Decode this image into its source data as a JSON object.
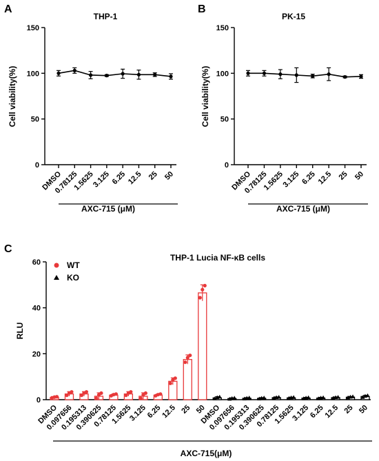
{
  "chart_data": [
    {
      "panel": "A",
      "type": "line",
      "title": "THP-1",
      "xlabel": "AXC-715 (μM)",
      "ylabel": "Cell viability(%)",
      "ylim": [
        0,
        150
      ],
      "yticks": [
        "0",
        "50",
        "100",
        "150"
      ],
      "categories": [
        "DMSO",
        "0.78125",
        "1.5625",
        "3.125",
        "6.25",
        "12.5",
        "25",
        "50"
      ],
      "series": [
        {
          "name": "",
          "values": [
            100,
            103,
            98,
            97.5,
            99.5,
            98.5,
            98.5,
            96.5
          ],
          "errors": [
            3,
            3,
            4,
            1,
            5,
            5,
            2,
            3
          ]
        }
      ],
      "color": "#000000"
    },
    {
      "panel": "B",
      "type": "line",
      "title": "PK-15",
      "xlabel": "AXC-715 (μM)",
      "ylabel": "Cell viability(%)",
      "ylim": [
        0,
        150
      ],
      "yticks": [
        "0",
        "50",
        "100",
        "150"
      ],
      "categories": [
        "DMSO",
        "0.78125",
        "1.5625",
        "3.125",
        "6.25",
        "12.5",
        "25",
        "50"
      ],
      "series": [
        {
          "name": "",
          "values": [
            100,
            100,
            99,
            98,
            97,
            99,
            96,
            96.5
          ],
          "errors": [
            3,
            3,
            5,
            8,
            2,
            7,
            1,
            2
          ]
        }
      ],
      "color": "#000000"
    },
    {
      "panel": "C",
      "type": "bar",
      "title": "THP-1 Lucia NF-κB cells",
      "xlabel": "AXC-715(μM)",
      "ylabel": "RLU",
      "ylim": [
        0,
        60
      ],
      "yticks": [
        "0",
        "20",
        "40",
        "60"
      ],
      "categories": [
        "DMSO",
        "0.097656",
        "0.195313",
        "0.390625",
        "0.78125",
        "1.5625",
        "3.125",
        "6.25",
        "12.5",
        "25",
        "50"
      ],
      "legend": [
        {
          "name": "WT",
          "color": "#e8393a",
          "marker": "circle"
        },
        {
          "name": "KO",
          "color": "#000000",
          "marker": "triangle"
        }
      ],
      "series": [
        {
          "name": "WT",
          "values": [
            1,
            2.5,
            2.5,
            1.5,
            2,
            2.5,
            1.5,
            2,
            8,
            17.5,
            46.5
          ],
          "errors": [
            0.3,
            1,
            1,
            1.5,
            0.5,
            1,
            1.5,
            0.5,
            1.5,
            2,
            3.5
          ]
        },
        {
          "name": "KO",
          "values": [
            0.8,
            0.5,
            0.6,
            0.6,
            0.9,
            0.8,
            0.7,
            0.7,
            0.9,
            1.1,
            1.4
          ],
          "errors": [
            0.5,
            0.3,
            0.3,
            0.3,
            0.3,
            0.3,
            0.3,
            0.3,
            0.3,
            0.3,
            0.5
          ]
        }
      ]
    }
  ],
  "panel_labels": [
    "A",
    "B",
    "C"
  ]
}
